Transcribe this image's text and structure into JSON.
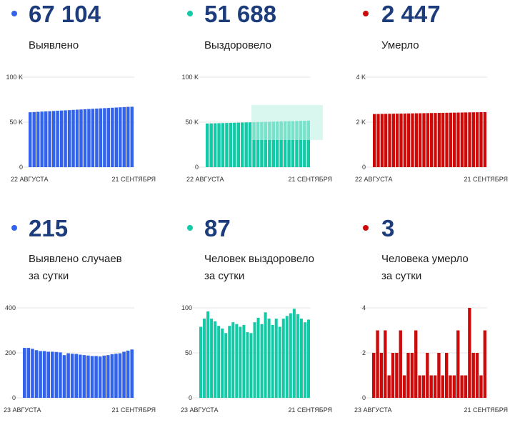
{
  "panels": [
    {
      "id": "p1",
      "color": "#3363ea",
      "value": "67 104",
      "caption": [
        "Выявлено"
      ],
      "chart_data": {
        "type": "bar",
        "title": "Выявлено",
        "y_ticks": [
          "100 K",
          "50 K",
          "0"
        ],
        "ylim": [
          0,
          100000
        ],
        "x_labels": [
          "22 АВГУСТА",
          "21 СЕНТЯБРЯ"
        ],
        "values": [
          61000,
          61240,
          61480,
          61720,
          61960,
          62200,
          62440,
          62680,
          62920,
          63160,
          63400,
          63640,
          63880,
          64120,
          64360,
          64600,
          64840,
          65080,
          65320,
          65560,
          65800,
          66040,
          66280,
          66520,
          66760,
          67000,
          67104
        ]
      }
    },
    {
      "id": "p2",
      "color": "#13c9a6",
      "value": "51 688",
      "caption": [
        "Выздоровело"
      ],
      "chart_data": {
        "type": "bar",
        "title": "Выздоровело",
        "y_ticks": [
          "100 K",
          "50 K",
          "0"
        ],
        "ylim": [
          0,
          100000
        ],
        "x_labels": [
          "22 АВГУСТА",
          "21 СЕНТЯБРЯ"
        ],
        "values": [
          48500,
          48620,
          48740,
          48860,
          48980,
          49100,
          49220,
          49340,
          49460,
          49580,
          49700,
          49820,
          49940,
          50060,
          50180,
          50300,
          50420,
          50540,
          50660,
          50780,
          50900,
          51020,
          51140,
          51260,
          51380,
          51500,
          51688
        ]
      }
    },
    {
      "id": "p3",
      "color": "#cc0a0a",
      "value": "2 447",
      "caption": [
        "Умерло"
      ],
      "chart_data": {
        "type": "bar",
        "title": "Умерло",
        "y_ticks": [
          "4 K",
          "2 K",
          "0"
        ],
        "ylim": [
          0,
          4000
        ],
        "x_labels": [
          "22 АВГУСТА",
          "21 СЕНТЯБРЯ"
        ],
        "values": [
          2360,
          2363,
          2366,
          2369,
          2372,
          2375,
          2378,
          2381,
          2384,
          2387,
          2390,
          2393,
          2396,
          2399,
          2402,
          2405,
          2408,
          2411,
          2414,
          2417,
          2420,
          2423,
          2426,
          2429,
          2432,
          2435,
          2438,
          2441,
          2444,
          2447
        ]
      }
    },
    {
      "id": "p4",
      "color": "#3363ea",
      "value": "215",
      "caption": [
        "Выявлено случаев",
        "за сутки"
      ],
      "chart_data": {
        "type": "bar",
        "title": "Выявлено случаев за сутки",
        "y_ticks": [
          "400",
          "200",
          "0"
        ],
        "ylim": [
          0,
          400
        ],
        "x_labels": [
          "23 АВГУСТА",
          "21 СЕНТЯБРЯ"
        ],
        "values": [
          222,
          222,
          218,
          212,
          208,
          208,
          205,
          205,
          204,
          202,
          190,
          198,
          196,
          195,
          192,
          190,
          188,
          186,
          186,
          184,
          188,
          190,
          194,
          196,
          198,
          205,
          210,
          215
        ]
      }
    },
    {
      "id": "p5",
      "color": "#13c9a6",
      "value": "87",
      "caption": [
        "Человек выздоровело",
        "за сутки"
      ],
      "chart_data": {
        "type": "bar",
        "title": "Человек выздоровело за сутки",
        "y_ticks": [
          "100",
          "50",
          "0"
        ],
        "ylim": [
          0,
          100
        ],
        "x_labels": [
          "23 АВГУСТА",
          "21 СЕНТЯБРЯ"
        ],
        "values": [
          79,
          88,
          96,
          88,
          85,
          80,
          77,
          72,
          80,
          84,
          82,
          79,
          81,
          73,
          72,
          84,
          89,
          82,
          95,
          88,
          81,
          88,
          79,
          88,
          91,
          94,
          99,
          93,
          88,
          84,
          87
        ]
      }
    },
    {
      "id": "p6",
      "color": "#cc0a0a",
      "value": "3",
      "caption": [
        "Человека умерло",
        "за сутки"
      ],
      "chart_data": {
        "type": "bar",
        "title": "Человека умерло за сутки",
        "y_ticks": [
          "4",
          "2",
          "0"
        ],
        "ylim": [
          0,
          4
        ],
        "x_labels": [
          "23 АВГУСТА",
          "21 СЕНТЯБРЯ"
        ],
        "values": [
          2,
          3,
          2,
          3,
          1,
          2,
          2,
          3,
          1,
          2,
          2,
          3,
          1,
          1,
          2,
          1,
          1,
          2,
          1,
          2,
          1,
          1,
          3,
          1,
          1,
          4,
          2,
          2,
          1,
          3
        ]
      }
    }
  ]
}
